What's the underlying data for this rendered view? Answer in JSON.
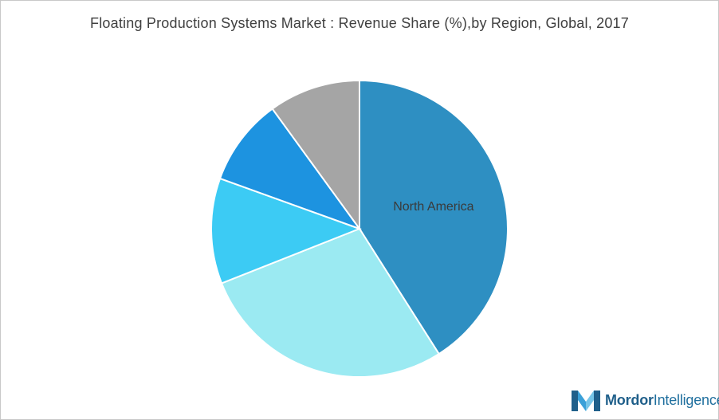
{
  "chart_data": {
    "type": "pie",
    "title": "Floating Production Systems Market : Revenue Share (%),by Region, Global, 2017",
    "start_angle_deg": 0,
    "direction": "clockwise",
    "slices": [
      {
        "label": "North America",
        "value": 41,
        "color": "#2e8fc2",
        "label_visible": true
      },
      {
        "label": "",
        "value": 28,
        "color": "#9beaf2",
        "label_visible": false
      },
      {
        "label": "",
        "value": 11.5,
        "color": "#3ccbf4",
        "label_visible": false
      },
      {
        "label": "",
        "value": 9.5,
        "color": "#1d93e0",
        "label_visible": false
      },
      {
        "label": "",
        "value": 10,
        "color": "#a5a5a5",
        "label_visible": false
      }
    ]
  },
  "branding": {
    "logo_word1": "Mordor",
    "logo_word2": "Intelligence",
    "logo_colors": [
      "#1f5f8a",
      "#3aa0d8",
      "#76c5e8"
    ]
  }
}
